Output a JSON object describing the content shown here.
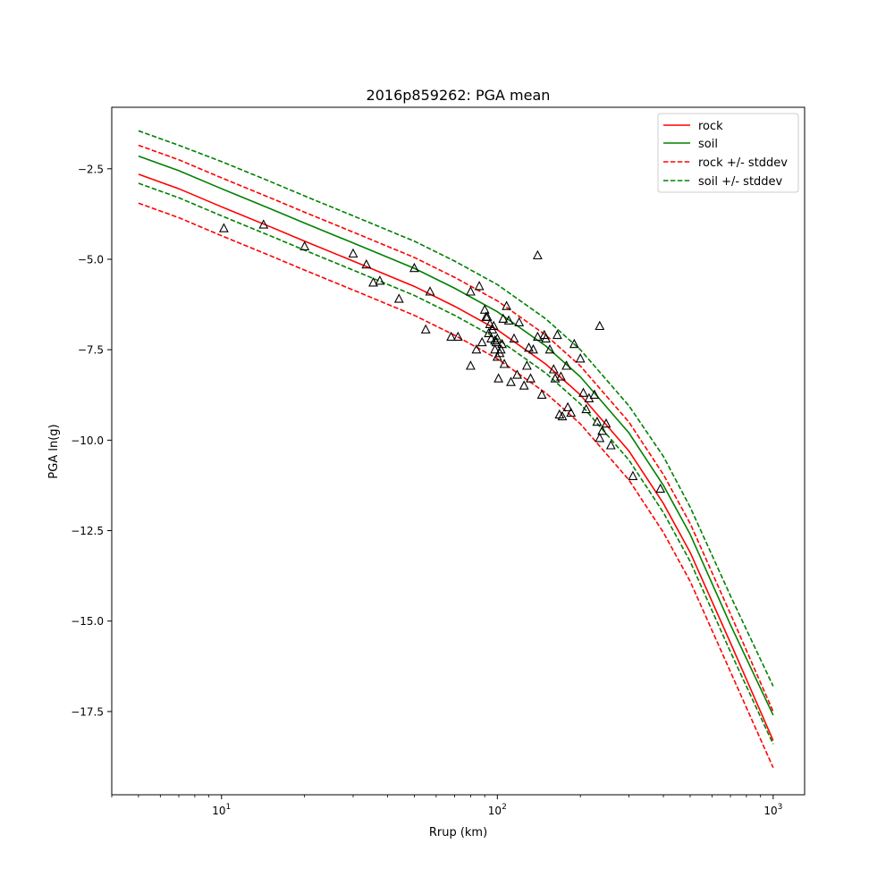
{
  "chart_data": {
    "type": "scatter",
    "title": "2016p859262: PGA mean",
    "xlabel": "Rrup (km)",
    "ylabel": "PGA ln(g)",
    "xscale": "log",
    "xlim": [
      4,
      1300
    ],
    "ylim": [
      -19.8,
      -0.8
    ],
    "grid": false,
    "legend_position": "top-right",
    "x_ticks": [
      {
        "value": 10,
        "base": "10",
        "exp": "1"
      },
      {
        "value": 100,
        "base": "10",
        "exp": "2"
      },
      {
        "value": 1000,
        "base": "10",
        "exp": "3"
      }
    ],
    "y_ticks": [
      {
        "value": -2.5,
        "label": "−2.5"
      },
      {
        "value": -5.0,
        "label": "−5.0"
      },
      {
        "value": -7.5,
        "label": "−7.5"
      },
      {
        "value": -10.0,
        "label": "−10.0"
      },
      {
        "value": -12.5,
        "label": "−12.5"
      },
      {
        "value": -15.0,
        "label": "−15.0"
      },
      {
        "value": -17.5,
        "label": "−17.5"
      }
    ],
    "series": [
      {
        "name": "rock",
        "style": "solid",
        "color": "#ff0000",
        "x": [
          5,
          7,
          10,
          15,
          20,
          30,
          50,
          70,
          100,
          150,
          200,
          300,
          400,
          500,
          700,
          1000
        ],
        "y": [
          -2.65,
          -3.05,
          -3.55,
          -4.1,
          -4.5,
          -5.05,
          -5.75,
          -6.3,
          -6.95,
          -7.9,
          -8.75,
          -10.3,
          -11.75,
          -13.1,
          -15.6,
          -18.3
        ]
      },
      {
        "name": "soil",
        "style": "solid",
        "color": "#008000",
        "x": [
          5,
          7,
          10,
          15,
          20,
          30,
          50,
          70,
          100,
          150,
          200,
          300,
          400,
          500,
          700,
          1000
        ],
        "y": [
          -2.15,
          -2.55,
          -3.05,
          -3.6,
          -4.0,
          -4.55,
          -5.25,
          -5.8,
          -6.45,
          -7.4,
          -8.25,
          -9.8,
          -11.25,
          -12.6,
          -15.1,
          -17.6
        ]
      },
      {
        "name": "rock +/- stddev",
        "style": "dashed",
        "color": "#ff0000",
        "x": [
          5,
          7,
          10,
          15,
          20,
          30,
          50,
          70,
          100,
          150,
          200,
          300,
          400,
          500,
          700,
          1000
        ],
        "y": [
          -1.85,
          -2.25,
          -2.75,
          -3.3,
          -3.7,
          -4.25,
          -4.95,
          -5.5,
          -6.15,
          -7.1,
          -7.95,
          -9.5,
          -10.95,
          -12.3,
          -14.8,
          -17.5
        ]
      },
      {
        "name": "",
        "style": "dashed",
        "color": "#ff0000",
        "x": [
          5,
          7,
          10,
          15,
          20,
          30,
          50,
          70,
          100,
          150,
          200,
          300,
          400,
          500,
          700,
          1000
        ],
        "y": [
          -3.45,
          -3.85,
          -4.35,
          -4.9,
          -5.3,
          -5.85,
          -6.55,
          -7.1,
          -7.75,
          -8.7,
          -9.55,
          -11.1,
          -12.55,
          -13.9,
          -16.4,
          -19.05
        ]
      },
      {
        "name": "soil +/- stddev",
        "style": "dashed",
        "color": "#008000",
        "x": [
          5,
          7,
          10,
          15,
          20,
          30,
          50,
          70,
          100,
          150,
          200,
          300,
          400,
          500,
          700,
          1000
        ],
        "y": [
          -1.45,
          -1.85,
          -2.3,
          -2.85,
          -3.25,
          -3.8,
          -4.5,
          -5.05,
          -5.7,
          -6.65,
          -7.5,
          -9.05,
          -10.45,
          -11.85,
          -14.3,
          -16.8
        ]
      },
      {
        "name": "",
        "style": "dashed",
        "color": "#008000",
        "x": [
          5,
          7,
          10,
          15,
          20,
          30,
          50,
          70,
          100,
          150,
          200,
          300,
          400,
          500,
          700,
          1000
        ],
        "y": [
          -2.9,
          -3.3,
          -3.8,
          -4.35,
          -4.75,
          -5.3,
          -6.0,
          -6.55,
          -7.2,
          -8.15,
          -9.0,
          -10.55,
          -12.0,
          -13.35,
          -15.85,
          -18.4
        ]
      }
    ],
    "observations": {
      "name": "observed",
      "marker": "triangle-open",
      "color": "#000000",
      "x": [
        10.2,
        14.2,
        20,
        30,
        33.5,
        35.5,
        37.5,
        44,
        50,
        55,
        57,
        68,
        72,
        80,
        80,
        84,
        86,
        88,
        90,
        91,
        92,
        93,
        94,
        95,
        96,
        97,
        98,
        98,
        99,
        100,
        100,
        101,
        102,
        103,
        104,
        105,
        106,
        108,
        110,
        112,
        115,
        118,
        120,
        125,
        128,
        130,
        132,
        135,
        140,
        145,
        148,
        150,
        155,
        160,
        162,
        165,
        168,
        170,
        172,
        178,
        180,
        185,
        190,
        200,
        205,
        210,
        215,
        225,
        230,
        235,
        240,
        248,
        258,
        140,
        235,
        310,
        390
      ],
      "y": [
        -4.15,
        -4.05,
        -4.65,
        -4.85,
        -5.15,
        -5.65,
        -5.6,
        -6.1,
        -5.25,
        -6.95,
        -5.9,
        -7.15,
        -7.15,
        -5.9,
        -7.95,
        -7.5,
        -5.75,
        -7.3,
        -6.4,
        -6.6,
        -6.6,
        -7.05,
        -6.8,
        -7.2,
        -6.95,
        -6.85,
        -7.25,
        -7.5,
        -7.3,
        -7.2,
        -7.7,
        -8.3,
        -7.6,
        -7.5,
        -7.35,
        -6.65,
        -7.9,
        -6.3,
        -6.7,
        -8.4,
        -7.2,
        -8.2,
        -6.75,
        -8.5,
        -7.95,
        -7.45,
        -8.3,
        -7.5,
        -7.15,
        -8.75,
        -7.1,
        -7.2,
        -7.5,
        -8.05,
        -8.3,
        -7.1,
        -9.3,
        -8.25,
        -9.35,
        -7.95,
        -9.1,
        -9.25,
        -7.35,
        -7.75,
        -8.7,
        -9.15,
        -8.85,
        -8.75,
        -9.5,
        -9.95,
        -9.75,
        -9.55,
        -10.15,
        -4.9,
        -6.85,
        -11.0,
        -11.35
      ]
    }
  }
}
